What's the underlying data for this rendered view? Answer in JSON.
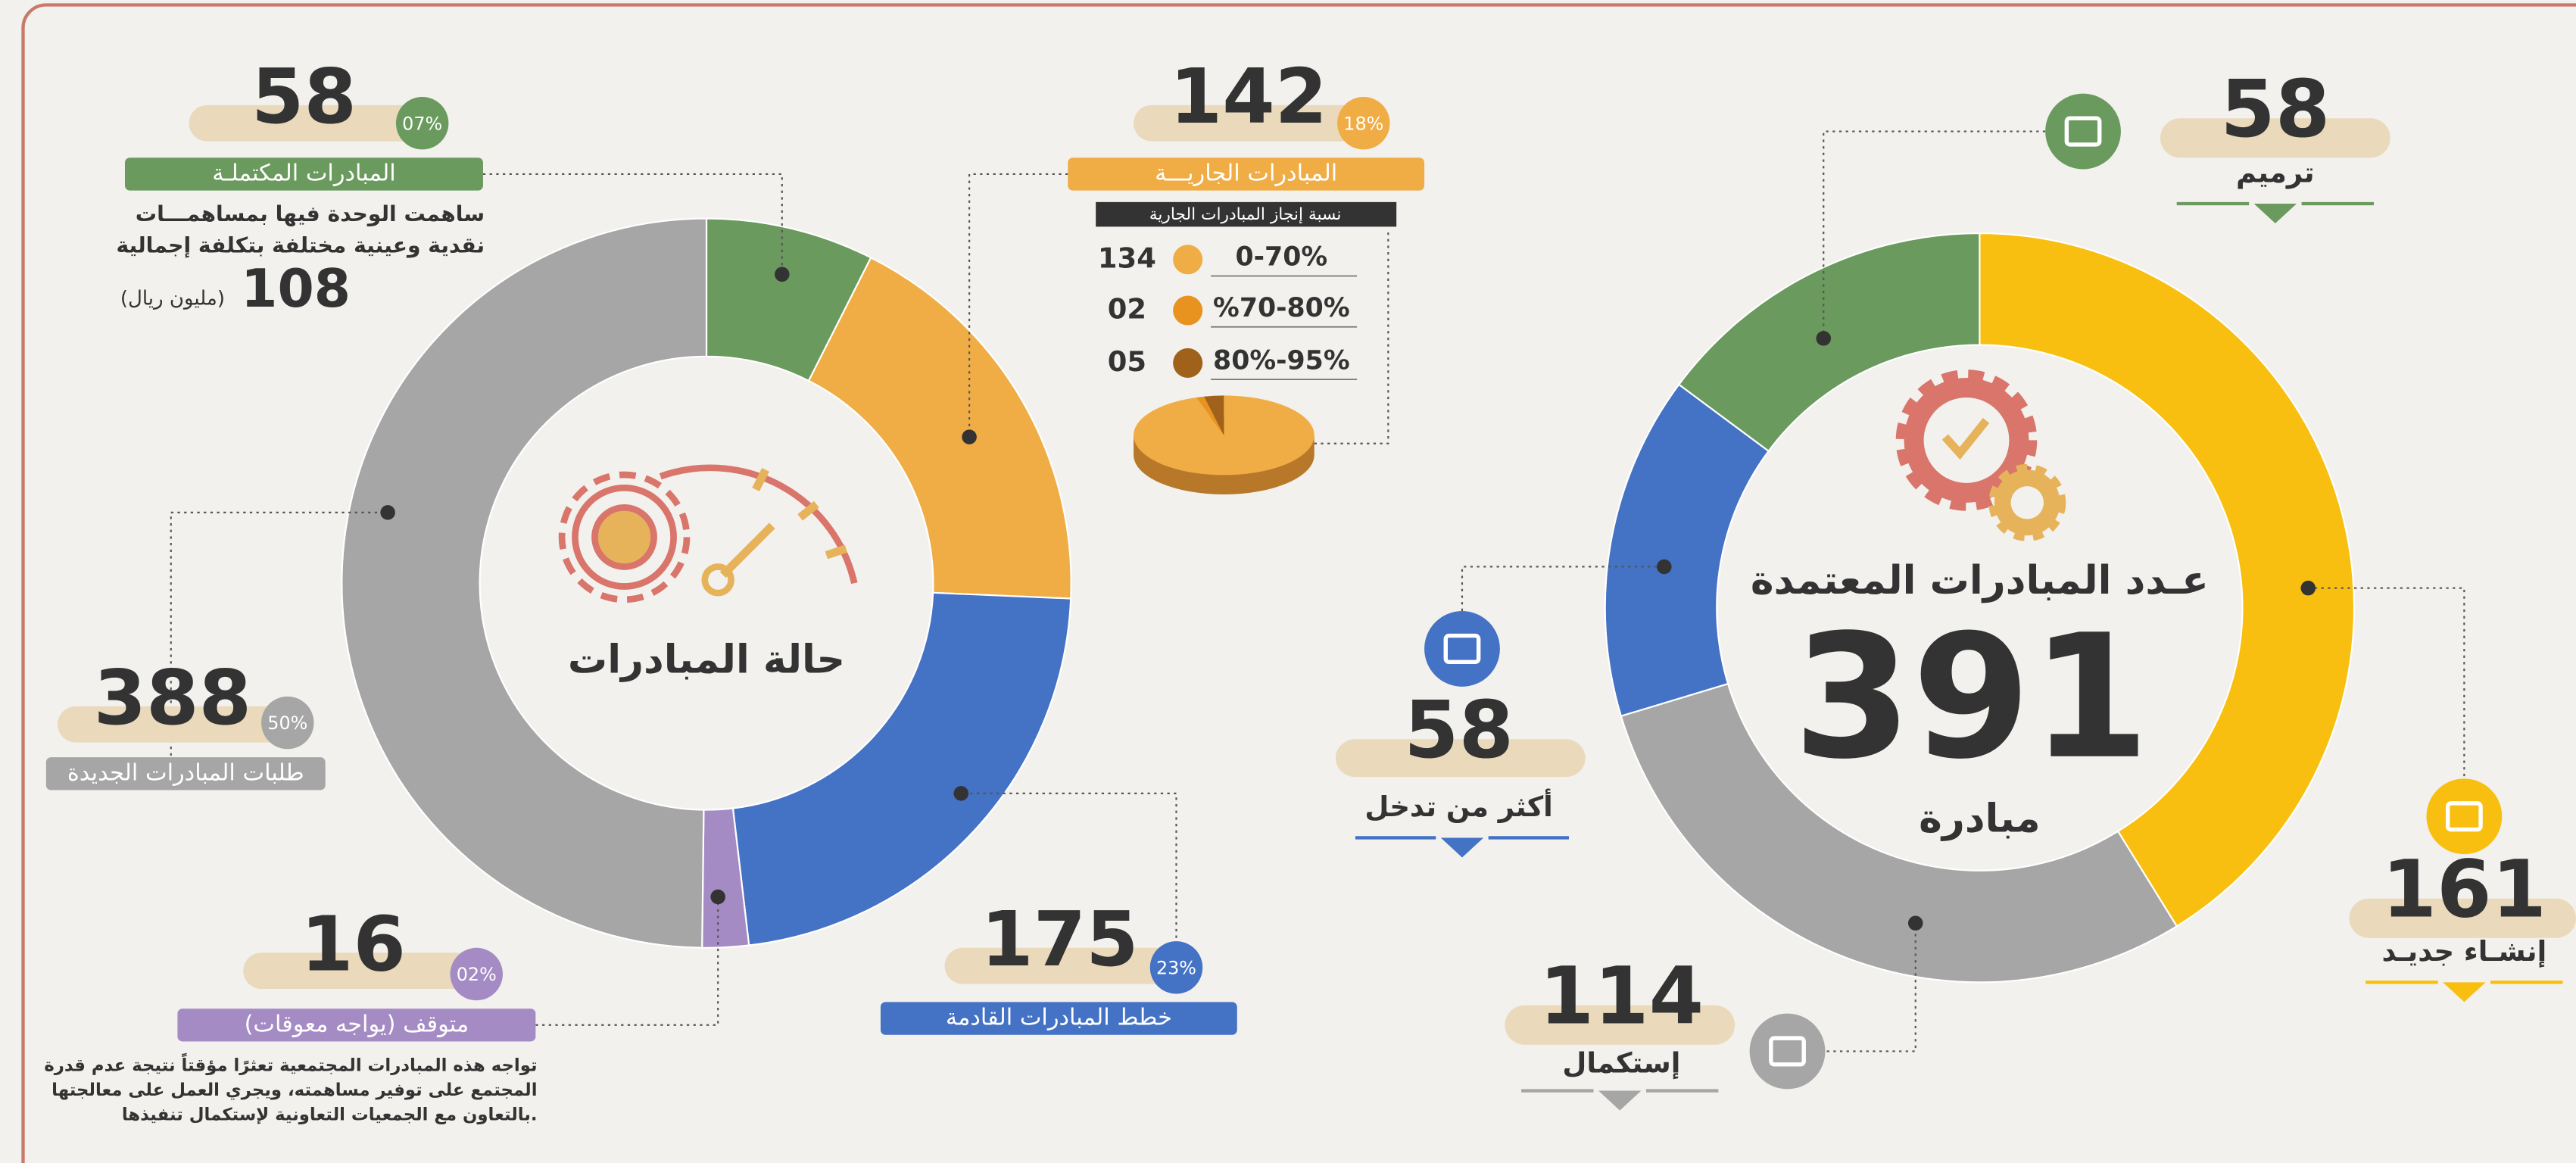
{
  "chart_data": [
    {
      "type": "donut",
      "title": "حالة المبادرات",
      "categories": [
        "المبادرات المكتملـة",
        "المبادرات الجاريـــة",
        "خطط المبادرات القادمة",
        "متوقف (يواجه معوقات)",
        "طلبات المبادرات الجديدة"
      ],
      "values": [
        58,
        142,
        175,
        16,
        388
      ],
      "percent_labels": [
        "07%",
        "18%",
        "23%",
        "02%",
        "50%"
      ],
      "colors": [
        "#6a9a5e",
        "#f0ad45",
        "#4472c4",
        "#a58bc4",
        "#a6a6a6"
      ],
      "completed_note": {
        "lines": [
          "ساهمت الوحدة فيها بمساهمـــات",
          "نقدية وعينية مختلفة بتكلفة إجمالية"
        ],
        "amount": "108",
        "unit": "(مليون ريال)"
      },
      "stopped_note": {
        "lines": [
          "تواجه هذه المبادرات المجتمعية تعثرًا مؤقتاً نتيجة عدم قدرة",
          "المجتمع على توفير مساهمته، ويجري العمل على معالجتها",
          "بالتعاون مع الجمعيات التعاونية لإستكمال تنفيذها."
        ]
      },
      "running_breakdown": {
        "type": "pie",
        "title": "نسبة إنجاز المبادرات الجارية",
        "categories": [
          "0-70%",
          "%70-80%",
          "80%-95%"
        ],
        "values": [
          134,
          2,
          5
        ],
        "value_labels": [
          "134",
          "02",
          "05"
        ],
        "colors": [
          "#f0ad45",
          "#e8931f",
          "#a0621a"
        ]
      }
    },
    {
      "type": "donut",
      "title": "عـدد المبادرات المعتمدة",
      "total": "391",
      "unit": "مبادرة",
      "categories": [
        "إنشـاء جديـد",
        "إستكمال",
        "أكثر من تدخل",
        "ترميم"
      ],
      "values": [
        161,
        114,
        58,
        58
      ],
      "colors": [
        "#f9bf10",
        "#a6a6a6",
        "#4472c4",
        "#6a9a5e"
      ]
    }
  ]
}
